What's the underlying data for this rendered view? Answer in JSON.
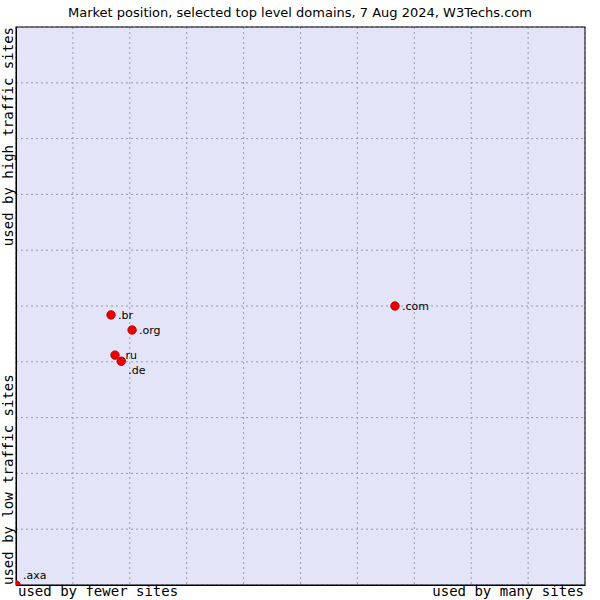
{
  "chart_data": {
    "type": "scatter",
    "title": "Market position, selected top level domains, 7 Aug 2024, W3Techs.com",
    "xlabel": [
      "used by fewer sites",
      "used by many sites"
    ],
    "ylabel": [
      "used by low traffic sites",
      "used by high traffic sites"
    ],
    "labels": [
      ".br",
      ".org",
      ".ru",
      ".de",
      ".com",
      ".axa"
    ],
    "x": [
      1.67,
      2.04,
      1.74,
      1.85,
      6.66,
      0
    ],
    "values": [
      4.84,
      4.57,
      4.12,
      4.01,
      5.0,
      0
    ],
    "xlim": [
      0,
      10
    ],
    "ylim": [
      0,
      10
    ],
    "xticks": [
      0,
      1,
      2,
      3,
      4,
      5,
      6,
      7,
      8,
      9,
      10
    ],
    "yticks": [
      0,
      1,
      2,
      3,
      4,
      5,
      6,
      7,
      8,
      9,
      10
    ],
    "grid": true,
    "tick_labels": false,
    "color": "#ee0000",
    "marker": "circle"
  }
}
